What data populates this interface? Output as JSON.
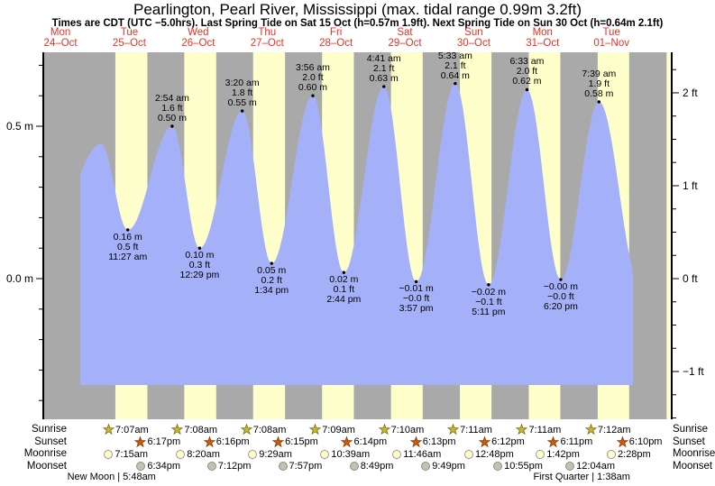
{
  "title": "Pearlington, Pearl River, Mississippi (max. tidal range 0.99m 3.2ft)",
  "subtitle": "Times are CDT (UTC −5.0hrs). Last Spring Tide on Sat 15 Oct (h=0.57m 1.9ft). Next Spring Tide on Sun 30 Oct (h=0.64m 2.1ft)",
  "colors": {
    "night": "#a9a9a9",
    "day": "#ffffcc",
    "tide": "#a4b1f9",
    "day_label_red": "#e53225",
    "axis": "#000000"
  },
  "chart_data": {
    "type": "area",
    "x_axis": {
      "hours_span": 219,
      "days": [
        {
          "name": "Mon",
          "date": "24–Oct"
        },
        {
          "name": "Tue",
          "date": "25–Oct"
        },
        {
          "name": "Wed",
          "date": "26–Oct"
        },
        {
          "name": "Thu",
          "date": "27–Oct"
        },
        {
          "name": "Fri",
          "date": "28–Oct"
        },
        {
          "name": "Sat",
          "date": "29–Oct"
        },
        {
          "name": "Sun",
          "date": "30–Oct"
        },
        {
          "name": "Mon",
          "date": "31–Oct"
        },
        {
          "name": "Tue",
          "date": "01–Nov"
        }
      ]
    },
    "y_axis_left": {
      "unit": "m",
      "minor_step": 0.1,
      "labels": [
        {
          "value": 0.5,
          "text": "0.5 m"
        },
        {
          "value": 0.0,
          "text": "0.0 m"
        }
      ]
    },
    "y_axis_right": {
      "unit": "ft",
      "minor_step": 0.25,
      "labels": [
        {
          "value": 2,
          "text": "2 ft"
        },
        {
          "value": 1,
          "text": "1 ft"
        },
        {
          "value": 0,
          "text": "0 ft"
        },
        {
          "value": -1,
          "text": "−1 ft"
        }
      ]
    },
    "extremes": [
      {
        "kind": "high",
        "day": 2,
        "timeh": 2.9,
        "time": "2:54 am",
        "ft": "1.6 ft",
        "m": "0.50 m",
        "height": 0.5
      },
      {
        "kind": "high",
        "day": 3,
        "timeh": 3.333,
        "time": "3:20 am",
        "ft": "1.8 ft",
        "m": "0.55 m",
        "height": 0.55
      },
      {
        "kind": "high",
        "day": 4,
        "timeh": 3.933,
        "time": "3:56 am",
        "ft": "2.0 ft",
        "m": "0.60 m",
        "height": 0.6
      },
      {
        "kind": "high",
        "day": 5,
        "timeh": 4.683,
        "time": "4:41 am",
        "ft": "2.1 ft",
        "m": "0.63 m",
        "height": 0.63
      },
      {
        "kind": "high",
        "day": 6,
        "timeh": 5.55,
        "time": "5:33 am",
        "ft": "2.1 ft",
        "m": "0.64 m",
        "height": 0.64
      },
      {
        "kind": "high",
        "day": 7,
        "timeh": 6.55,
        "time": "6:33 am",
        "ft": "2.0 ft",
        "m": "0.62 m",
        "height": 0.62
      },
      {
        "kind": "high",
        "day": 8,
        "timeh": 7.65,
        "time": "7:39 am",
        "ft": "1.9 ft",
        "m": "0.58 m",
        "height": 0.58
      },
      {
        "kind": "low",
        "day": 1,
        "timeh": 11.45,
        "time": "11:27 am",
        "ft": "0.5 ft",
        "m": "0.16 m",
        "height": 0.16
      },
      {
        "kind": "low",
        "day": 2,
        "timeh": 12.483,
        "time": "12:29 pm",
        "ft": "0.3 ft",
        "m": "0.10 m",
        "height": 0.1
      },
      {
        "kind": "low",
        "day": 3,
        "timeh": 13.567,
        "time": "1:34 pm",
        "ft": "0.2 ft",
        "m": "0.05 m",
        "height": 0.05
      },
      {
        "kind": "low",
        "day": 4,
        "timeh": 14.733,
        "time": "2:44 pm",
        "ft": "0.1 ft",
        "m": "0.02 m",
        "height": 0.02
      },
      {
        "kind": "low",
        "day": 5,
        "timeh": 15.95,
        "time": "3:57 pm",
        "ft": "−0.0 ft",
        "m": "−0.01 m",
        "height": -0.01
      },
      {
        "kind": "low",
        "day": 6,
        "timeh": 17.183,
        "time": "5:11 pm",
        "ft": "−0.1 ft",
        "m": "−0.02 m",
        "height": -0.02
      },
      {
        "kind": "low",
        "day": 7,
        "timeh": 18.333,
        "time": "6:20 pm",
        "ft": "−0.0 ft",
        "m": "−0.00 m",
        "height": -0.003
      }
    ],
    "tide_curve_anchors": [
      {
        "day": 0,
        "timeh": 8.0,
        "height": 0.15
      },
      {
        "day": 1,
        "timeh": 2.08,
        "height": 0.442
      },
      {
        "day": 1,
        "timeh": 11.45,
        "height": 0.16
      },
      {
        "day": 2,
        "timeh": 2.9,
        "height": 0.5
      },
      {
        "day": 2,
        "timeh": 12.483,
        "height": 0.1
      },
      {
        "day": 3,
        "timeh": 3.333,
        "height": 0.55
      },
      {
        "day": 3,
        "timeh": 13.567,
        "height": 0.05
      },
      {
        "day": 4,
        "timeh": 3.933,
        "height": 0.6
      },
      {
        "day": 4,
        "timeh": 14.733,
        "height": 0.02
      },
      {
        "day": 5,
        "timeh": 4.683,
        "height": 0.63
      },
      {
        "day": 5,
        "timeh": 15.95,
        "height": -0.01
      },
      {
        "day": 6,
        "timeh": 5.55,
        "height": 0.64
      },
      {
        "day": 6,
        "timeh": 17.183,
        "height": -0.02
      },
      {
        "day": 7,
        "timeh": 6.55,
        "height": 0.62
      },
      {
        "day": 7,
        "timeh": 18.333,
        "height": -0.003
      },
      {
        "day": 8,
        "timeh": 7.65,
        "height": 0.58
      },
      {
        "day": 8,
        "timeh": 22.0,
        "height": -0.02
      }
    ],
    "curve_start": {
      "day": 0,
      "timeh": 18.88
    },
    "curve_end": {
      "day": 8,
      "timeh": 19.5
    },
    "extra_daylight_band": {
      "day": 9,
      "a": 7.217,
      "b": 18.15
    }
  },
  "astro": {
    "rows": [
      {
        "key": "sunrise",
        "label": "Sunrise",
        "icon_shape": "star",
        "icon_fill": "#c9b82e",
        "icon_stroke": "#7a701a",
        "events": [
          {
            "day": 1,
            "timeh": 7.117,
            "label": "7:07am"
          },
          {
            "day": 2,
            "timeh": 7.133,
            "label": "7:08am"
          },
          {
            "day": 3,
            "timeh": 7.133,
            "label": "7:08am"
          },
          {
            "day": 4,
            "timeh": 7.15,
            "label": "7:09am"
          },
          {
            "day": 5,
            "timeh": 7.167,
            "label": "7:10am"
          },
          {
            "day": 6,
            "timeh": 7.183,
            "label": "7:11am"
          },
          {
            "day": 7,
            "timeh": 7.183,
            "label": "7:11am"
          },
          {
            "day": 8,
            "timeh": 7.2,
            "label": "7:12am"
          }
        ]
      },
      {
        "key": "sunset",
        "label": "Sunset",
        "icon_shape": "star",
        "icon_fill": "#cc5c09",
        "icon_stroke": "#8a3c06",
        "events": [
          {
            "day": 1,
            "timeh": 18.283,
            "label": "6:17pm"
          },
          {
            "day": 2,
            "timeh": 18.267,
            "label": "6:16pm"
          },
          {
            "day": 3,
            "timeh": 18.25,
            "label": "6:15pm"
          },
          {
            "day": 4,
            "timeh": 18.233,
            "label": "6:14pm"
          },
          {
            "day": 5,
            "timeh": 18.217,
            "label": "6:13pm"
          },
          {
            "day": 6,
            "timeh": 18.2,
            "label": "6:12pm"
          },
          {
            "day": 7,
            "timeh": 18.183,
            "label": "6:11pm"
          },
          {
            "day": 8,
            "timeh": 18.167,
            "label": "6:10pm"
          }
        ]
      },
      {
        "key": "moonrise",
        "label": "Moonrise",
        "icon_shape": "circle",
        "icon_fill": "#ffffd9",
        "icon_stroke": "#9a9a84",
        "events": [
          {
            "day": 1,
            "timeh": 7.25,
            "label": "7:15am"
          },
          {
            "day": 2,
            "timeh": 8.333,
            "label": "8:20am"
          },
          {
            "day": 3,
            "timeh": 9.483,
            "label": "9:29am"
          },
          {
            "day": 4,
            "timeh": 10.65,
            "label": "10:39am"
          },
          {
            "day": 5,
            "timeh": 11.767,
            "label": "11:46am"
          },
          {
            "day": 6,
            "timeh": 12.8,
            "label": "12:48pm"
          },
          {
            "day": 7,
            "timeh": 13.7,
            "label": "1:42pm"
          },
          {
            "day": 8,
            "timeh": 14.467,
            "label": "2:28pm"
          }
        ]
      },
      {
        "key": "moonset",
        "label": "Moonset",
        "icon_shape": "circle",
        "icon_fill": "#c2c2b2",
        "icon_stroke": "#8f8f85",
        "events": [
          {
            "day": 1,
            "timeh": 18.567,
            "label": "6:34pm"
          },
          {
            "day": 2,
            "timeh": 19.2,
            "label": "7:12pm"
          },
          {
            "day": 3,
            "timeh": 19.95,
            "label": "7:57pm"
          },
          {
            "day": 4,
            "timeh": 20.817,
            "label": "8:49pm"
          },
          {
            "day": 5,
            "timeh": 21.817,
            "label": "9:49pm"
          },
          {
            "day": 6,
            "timeh": 22.917,
            "label": "10:55pm"
          },
          {
            "day": 8,
            "timeh": 0.067,
            "label": "12:04am"
          }
        ]
      }
    ],
    "phases": [
      {
        "label": "New Moon | 5:48am",
        "day": 1,
        "timeh": 5.8
      },
      {
        "label": "First Quarter | 1:38am",
        "day": 8,
        "timeh": 1.633
      }
    ]
  }
}
